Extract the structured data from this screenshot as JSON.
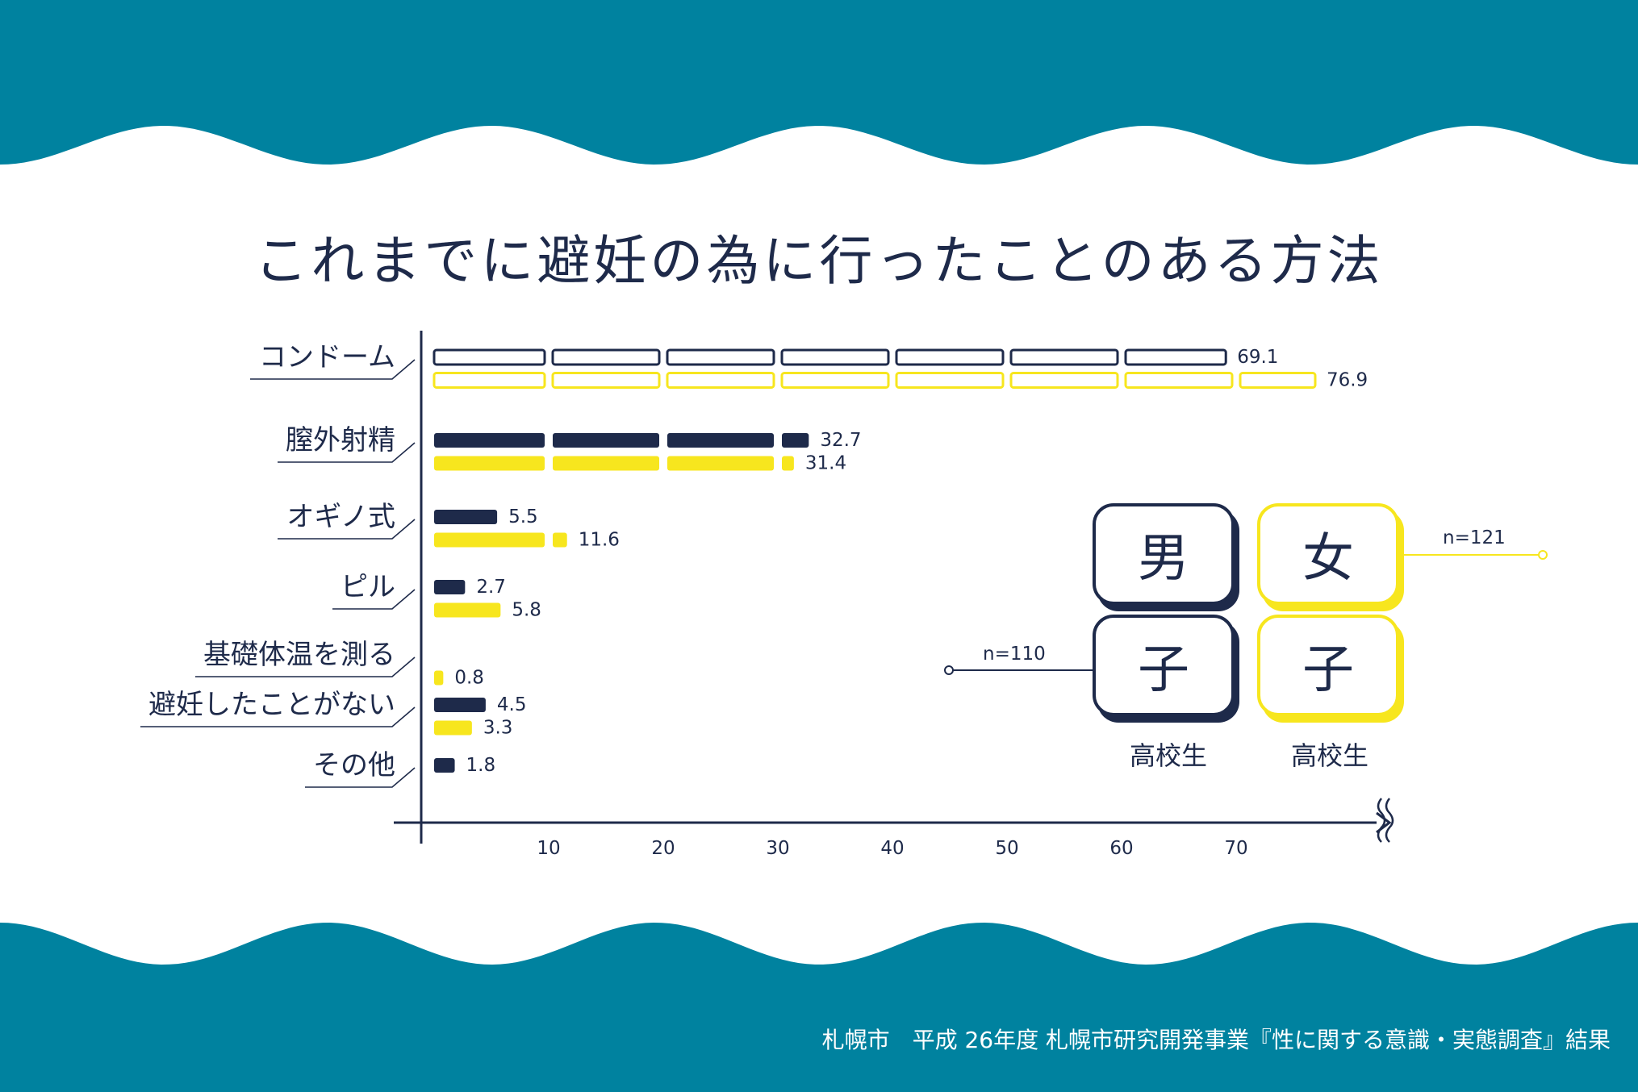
{
  "title": "これまでに避妊の為に行ったことのある方法",
  "source": "札幌市　平成 26年度 札幌市研究開発事業『性に関する意識・実態調査』結果",
  "colors": {
    "wave": "#00829f",
    "male": "#1e2a4a",
    "female": "#f7e61e",
    "axis": "#1e2a4a"
  },
  "legend": {
    "male": {
      "char1": "男",
      "char2": "子",
      "sub": "高校生",
      "n": "n=110"
    },
    "female": {
      "char1": "女",
      "char2": "子",
      "sub": "高校生",
      "n": "n=121"
    }
  },
  "chart_data": {
    "type": "bar",
    "orientation": "horizontal",
    "categories": [
      "コンドーム",
      "膣外射精",
      "オギノ式",
      "ピル",
      "基礎体温を測る",
      "避妊したことがない",
      "その他"
    ],
    "series": [
      {
        "name": "男子 高校生",
        "values": [
          69.1,
          32.7,
          5.5,
          2.7,
          null,
          4.5,
          1.8
        ],
        "labels": [
          "69.1",
          "32.7",
          "5.5",
          "2.7",
          "",
          "4.5",
          "1.8"
        ]
      },
      {
        "name": "女子 高校生",
        "values": [
          76.9,
          31.4,
          11.6,
          5.8,
          0.8,
          3.3,
          null
        ],
        "labels": [
          "76.9",
          "31.4",
          "11.6",
          "5.8",
          "0.8",
          "3.3",
          ""
        ]
      }
    ],
    "outlined_categories": [
      "コンドーム"
    ],
    "xticks": [
      "10",
      "20",
      "30",
      "40",
      "50",
      "60",
      "70"
    ],
    "xlim": [
      0,
      80
    ],
    "grid": false
  }
}
